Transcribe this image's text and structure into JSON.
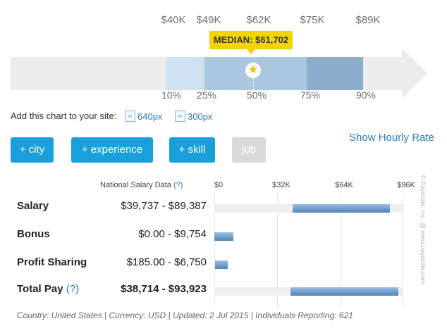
{
  "range_chart": {
    "dollar_ticks": [
      "$40K",
      "$49K",
      "$62K",
      "$75K",
      "$89K"
    ],
    "percentiles": [
      "10%",
      "25%",
      "50%",
      "75%",
      "90%"
    ],
    "median_label": "MEDIAN: $61,702"
  },
  "embed": {
    "label": "Add this chart to your site:",
    "link_640": "640px",
    "link_300": "300px"
  },
  "buttons": {
    "city": "+ city",
    "experience": "+ experience",
    "skill": "+ skill",
    "job": "job"
  },
  "hourly_link": "Show Hourly Rate",
  "table": {
    "header_label": "National Salary Data",
    "header_help": "(?)",
    "axis": [
      "$0",
      "$32K",
      "$64K",
      "$96K"
    ],
    "axis_max": 96000,
    "rows": [
      {
        "label": "Salary",
        "help": "",
        "value": "$39,737 - $89,387",
        "low": 39737,
        "high": 89387,
        "bold": false
      },
      {
        "label": "Bonus",
        "help": "",
        "value": "$0.00 - $9,754",
        "low": 0,
        "high": 9754,
        "bold": false
      },
      {
        "label": "Profit Sharing",
        "help": "",
        "value": "$185.00 - $6,750",
        "low": 185,
        "high": 6750,
        "bold": false
      },
      {
        "label": "Total Pay",
        "help": "(?)",
        "value": "$38,714 - $93,923",
        "low": 38714,
        "high": 93923,
        "bold": true
      }
    ]
  },
  "footer": "Country: United States | Currency: USD | Updated: 2 Jul 2015 | Individuals Reporting: 621",
  "copyright": "© Payscale, Inc. @ www.payscale.com"
}
